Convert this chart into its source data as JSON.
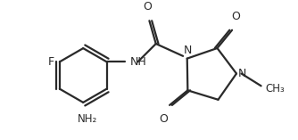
{
  "background_color": "#ffffff",
  "line_color": "#2a2a2a",
  "line_width": 1.6,
  "text_color": "#2a2a2a",
  "font_size": 8.5,
  "figsize": [
    3.34,
    1.57
  ],
  "dpi": 100,
  "xlim": [
    0,
    334
  ],
  "ylim": [
    0,
    157
  ]
}
